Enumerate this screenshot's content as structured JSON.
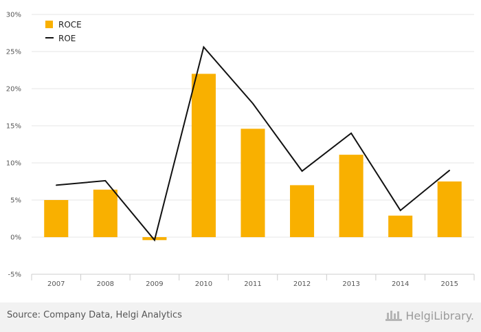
{
  "chart_data": {
    "type": "bar",
    "categories": [
      "2007",
      "2008",
      "2009",
      "2010",
      "2011",
      "2012",
      "2013",
      "2014",
      "2015"
    ],
    "series": [
      {
        "name": "ROCE",
        "kind": "bar",
        "color": "#f9b000",
        "values": [
          5.0,
          6.4,
          -0.4,
          22.0,
          14.6,
          7.0,
          11.1,
          2.9,
          7.5
        ]
      },
      {
        "name": "ROE",
        "kind": "line",
        "color": "#111111",
        "values": [
          7.0,
          7.6,
          -0.4,
          25.6,
          18.0,
          8.9,
          14.0,
          3.6,
          9.0
        ]
      }
    ],
    "ylim": [
      -5,
      30
    ],
    "y_ticks": [
      "-5%",
      "0%",
      "5%",
      "10%",
      "15%",
      "20%",
      "25%",
      "30%"
    ],
    "y_tick_values": [
      -5,
      0,
      5,
      10,
      15,
      20,
      25,
      30
    ],
    "grid": true,
    "legend_position": "top-left"
  },
  "footer": {
    "source": "Source: Company Data, Helgi Analytics",
    "brand": "HelgiLibrary."
  }
}
